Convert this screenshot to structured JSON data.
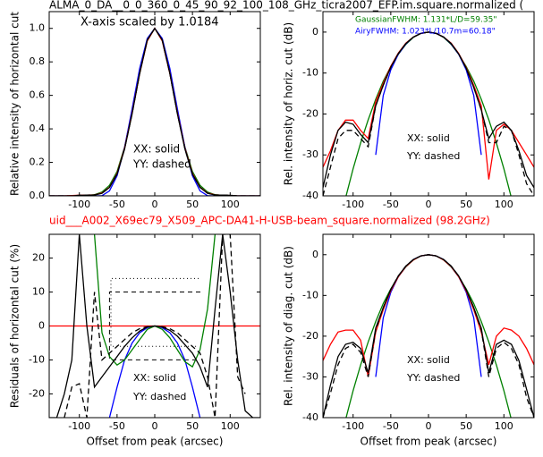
{
  "chart_data": [
    {
      "type": "line",
      "title": "ALMA_0_DA__0_0_360_0_45_90_92_100_108_GHz_ticra2007_EFP.im.square.normalized (",
      "ylabel": "Relative intensity of horizontal cut",
      "annotations": [
        "X-axis scaled by 1.0184",
        "XX: solid",
        "YY: dashed"
      ],
      "x": [
        -140,
        -130,
        -120,
        -110,
        -100,
        -90,
        -80,
        -70,
        -60,
        -50,
        -40,
        -30,
        -20,
        -10,
        0,
        10,
        20,
        30,
        40,
        50,
        60,
        70,
        80,
        90,
        100,
        110,
        120,
        130,
        140
      ],
      "xlim": [
        -140,
        140
      ],
      "xticks": [
        -100,
        -50,
        0,
        50,
        100
      ],
      "ylim": [
        0,
        1.1
      ],
      "yticks": [
        {
          "value": 0,
          "label": "0.0"
        },
        0.2,
        0.4,
        0.6,
        0.8,
        {
          "value": 1,
          "label": "1.0"
        }
      ],
      "series": [
        {
          "color": "#008000",
          "values": [
            0,
            0,
            0,
            0,
            0,
            0.002,
            0.007,
            0.023,
            0.063,
            0.146,
            0.292,
            0.5,
            0.735,
            0.926,
            1,
            0.926,
            0.735,
            0.5,
            0.292,
            0.146,
            0.063,
            0.023,
            0.007,
            0.002,
            0,
            0,
            0,
            0,
            0
          ]
        },
        {
          "color": "#0000ff",
          "values": [
            0,
            0,
            0,
            0,
            0,
            0,
            0,
            0.001,
            0.03,
            0.12,
            0.29,
            0.52,
            0.76,
            0.94,
            1,
            0.94,
            0.76,
            0.52,
            0.29,
            0.12,
            0.03,
            0.001,
            0,
            0,
            0,
            0,
            0,
            0,
            0
          ]
        },
        {
          "color": "#ff0000",
          "values": [
            0,
            0,
            0,
            0.002,
            0.004,
            0.005,
            0.006,
            0.017,
            0.052,
            0.135,
            0.285,
            0.495,
            0.73,
            0.925,
            1,
            0.925,
            0.73,
            0.495,
            0.285,
            0.135,
            0.052,
            0.017,
            0.006,
            0.004,
            0.002,
            0,
            0,
            0,
            0
          ]
        },
        {
          "color": "#000000",
          "values": [
            0,
            0,
            0,
            0,
            0.003,
            0.005,
            0.005,
            0.015,
            0.05,
            0.13,
            0.28,
            0.49,
            0.73,
            0.93,
            1,
            0.93,
            0.73,
            0.49,
            0.28,
            0.13,
            0.05,
            0.015,
            0.005,
            0.005,
            0.003,
            0,
            0,
            0,
            0
          ]
        },
        {
          "color": "#000000",
          "dashed": true,
          "values": [
            0,
            0,
            0,
            0,
            0.003,
            0.005,
            0.006,
            0.016,
            0.051,
            0.132,
            0.282,
            0.492,
            0.73,
            0.93,
            1,
            0.93,
            0.73,
            0.492,
            0.282,
            0.132,
            0.051,
            0.016,
            0.006,
            0.005,
            0.003,
            0,
            0,
            0,
            0
          ]
        }
      ]
    },
    {
      "type": "line",
      "ylabel": "Rel. intensity of horiz. cut (dB)",
      "annotations": [
        "XX: solid",
        "YY: dashed"
      ],
      "legend_texts": [
        {
          "text": "GaussianFWHM: 1.131*L/D=59.35\"",
          "color": "#008000"
        },
        {
          "text": "AiryFWHM: 1.023*L/10.7m=60.18\"",
          "color": "#0000ff"
        }
      ],
      "x": [
        -140,
        -130,
        -120,
        -110,
        -100,
        -90,
        -80,
        -70,
        -60,
        -50,
        -40,
        -30,
        -20,
        -10,
        0,
        10,
        20,
        30,
        40,
        50,
        60,
        70,
        80,
        90,
        100,
        110,
        120,
        130,
        140
      ],
      "xlim": [
        -140,
        140
      ],
      "xticks": [
        -100,
        -50,
        0,
        50,
        100
      ],
      "ylim": [
        -40,
        5
      ],
      "yticks": [
        -40,
        -30,
        -20,
        -10,
        0
      ],
      "series": [
        {
          "color": "#008000",
          "values": [
            null,
            null,
            null,
            -40.5,
            -33.4,
            -27.1,
            -21.4,
            -16.4,
            -12,
            -8.4,
            -5.4,
            -3,
            -1.3,
            -0.3,
            0,
            -0.3,
            -1.3,
            -3,
            -5.4,
            -8.4,
            -12,
            -16.4,
            -21.4,
            -27.1,
            -33.4,
            -40.5,
            null,
            null,
            null
          ]
        },
        {
          "color": "#0000ff",
          "values": [
            null,
            null,
            null,
            null,
            null,
            null,
            null,
            -30,
            -15.5,
            -9.2,
            -5.4,
            -2.9,
            -1.2,
            -0.3,
            0,
            -0.3,
            -1.2,
            -2.9,
            -5.4,
            -9.2,
            -15.5,
            -30,
            null,
            null,
            null,
            null,
            null,
            null,
            null
          ]
        },
        {
          "color": "#ff0000",
          "values": [
            -33,
            -29,
            -24,
            -21.5,
            -21.5,
            -24,
            -26,
            -17,
            -12.5,
            -8.3,
            -5.1,
            -2.7,
            -1.2,
            -0.3,
            0,
            -0.3,
            -1.2,
            -2.7,
            -5.2,
            -8.6,
            -13,
            -18,
            -36,
            -24,
            -22.5,
            -24,
            -27,
            -30,
            -33
          ]
        },
        {
          "color": "#000000",
          "values": [
            -38,
            -30,
            -24,
            -22,
            -22.5,
            -25,
            -27,
            -18,
            -13,
            -8.5,
            -5.2,
            -2.8,
            -1.2,
            -0.3,
            0,
            -0.3,
            -1.2,
            -2.8,
            -5.3,
            -8.8,
            -13.5,
            -19,
            -26,
            -23,
            -22,
            -24,
            -29,
            -35,
            -38
          ]
        },
        {
          "color": "#000000",
          "dashed": true,
          "values": [
            -40,
            -33,
            -26,
            -24,
            -24,
            -26,
            -28,
            -18,
            -13,
            -8.6,
            -5.3,
            -2.8,
            -1.2,
            -0.3,
            0,
            -0.3,
            -1.2,
            -2.8,
            -5.3,
            -8.8,
            -13.5,
            -19,
            -27,
            -27,
            -23,
            -24,
            -30,
            -37,
            -40
          ]
        }
      ]
    },
    {
      "type": "line",
      "title": "uid___A002_X69ec79_X509_APC-DA41-H-USB-beam_square.normalized (98.2GHz)",
      "title_color": "#ff0000",
      "ylabel": "Residuals of horizontal cut (%)",
      "xlabel": "Offset from peak (arcsec)",
      "annotations": [
        "XX: solid",
        "YY: dashed"
      ],
      "x": [
        -140,
        -130,
        -120,
        -110,
        -100,
        -90,
        -80,
        -70,
        -60,
        -50,
        -40,
        -30,
        -20,
        -10,
        0,
        10,
        20,
        30,
        40,
        50,
        60,
        70,
        80,
        90,
        100,
        110,
        120,
        130,
        140
      ],
      "xlim": [
        -140,
        140
      ],
      "xticks": [
        -100,
        -50,
        0,
        50,
        100
      ],
      "ylim": [
        -27,
        27
      ],
      "yticks": [
        -20,
        -10,
        0,
        10,
        20
      ],
      "series": [
        {
          "color": "#ff0000",
          "values": [
            0,
            0,
            0,
            0,
            0,
            0,
            0,
            0,
            0,
            0,
            0,
            0,
            0,
            0,
            0,
            0,
            0,
            0,
            0,
            0,
            0,
            0,
            0,
            0,
            0,
            0,
            0,
            0,
            0
          ]
        },
        {
          "color": "#0000ff",
          "values": [
            null,
            null,
            null,
            null,
            null,
            null,
            null,
            null,
            -27,
            -18,
            -10,
            -5,
            -2,
            -0.5,
            0,
            -0.5,
            -2,
            -5,
            -10,
            -18,
            -27,
            null,
            null,
            null,
            null,
            null,
            null,
            null,
            null
          ]
        },
        {
          "color": "#008000",
          "values": [
            null,
            null,
            null,
            null,
            null,
            null,
            27,
            -2,
            -9,
            -11.5,
            -10,
            -7,
            -4,
            -1,
            0,
            -1,
            -3.5,
            -7,
            -10.5,
            -12,
            -7,
            5,
            27,
            null,
            null,
            null,
            null,
            null,
            null
          ]
        },
        {
          "color": "#000000",
          "values": [
            -27,
            -27,
            -20,
            -10,
            27,
            0,
            -18,
            -15,
            -12,
            -9,
            -6,
            -3.5,
            -1.5,
            -0.3,
            0,
            -0.3,
            -1.3,
            -3,
            -5.5,
            -8,
            -12,
            -18,
            5,
            27,
            10,
            -10,
            -25,
            -27,
            -27
          ]
        },
        {
          "color": "#000000",
          "dashed": true,
          "values": [
            null,
            null,
            -27,
            -18,
            -17,
            -27,
            10,
            -10,
            -8,
            -6,
            -4,
            -2,
            -0.8,
            -0.2,
            0,
            -0.2,
            -0.8,
            -2,
            -4,
            -6,
            -8,
            -15,
            -27,
            27,
            27,
            -15,
            -20,
            null,
            null
          ]
        }
      ]
    },
    {
      "type": "line",
      "ylabel": "Rel. intensity of diag. cut (dB)",
      "xlabel": "Offset from peak (arcsec)",
      "annotations": [
        "XX: solid",
        "YY: dashed"
      ],
      "x": [
        -140,
        -130,
        -120,
        -110,
        -100,
        -90,
        -80,
        -70,
        -60,
        -50,
        -40,
        -30,
        -20,
        -10,
        0,
        10,
        20,
        30,
        40,
        50,
        60,
        70,
        80,
        90,
        100,
        110,
        120,
        130,
        140
      ],
      "xlim": [
        -140,
        140
      ],
      "xticks": [
        -100,
        -50,
        0,
        50,
        100
      ],
      "ylim": [
        -40,
        5
      ],
      "yticks": [
        -40,
        -30,
        -20,
        -10,
        0
      ],
      "series": [
        {
          "color": "#008000",
          "values": [
            null,
            null,
            null,
            -40.5,
            -33.4,
            -27.1,
            -21.4,
            -16.4,
            -12,
            -8.4,
            -5.4,
            -3,
            -1.3,
            -0.3,
            0,
            -0.3,
            -1.3,
            -3,
            -5.4,
            -8.4,
            -12,
            -16.4,
            -21.4,
            -27.1,
            -33.4,
            -40.5,
            null,
            null,
            null
          ]
        },
        {
          "color": "#0000ff",
          "values": [
            null,
            null,
            null,
            null,
            null,
            null,
            null,
            -30,
            -15.5,
            -9.2,
            -5.4,
            -2.9,
            -1.2,
            -0.3,
            0,
            -0.3,
            -1.2,
            -2.9,
            -5.4,
            -9.2,
            -15.5,
            -30,
            null,
            null,
            null,
            null,
            null,
            null,
            null
          ]
        },
        {
          "color": "#ff0000",
          "values": [
            -26,
            -22,
            -19,
            -18.5,
            -18.5,
            -21,
            -30,
            -19,
            -13.5,
            -8.8,
            -5.4,
            -2.9,
            -1.3,
            -0.3,
            0,
            -0.3,
            -1.3,
            -2.9,
            -5.4,
            -8.9,
            -13.5,
            -19,
            -27,
            -20,
            -18,
            -18.5,
            -20,
            -23,
            -27
          ]
        },
        {
          "color": "#000000",
          "values": [
            -40,
            -32,
            -25,
            -22,
            -21.5,
            -23,
            -29,
            -18,
            -13,
            -8.5,
            -5.2,
            -2.8,
            -1.2,
            -0.3,
            0,
            -0.3,
            -1.2,
            -2.8,
            -5.2,
            -8.6,
            -13,
            -18,
            -29,
            -22,
            -21,
            -22,
            -26,
            -33,
            -40
          ]
        },
        {
          "color": "#000000",
          "dashed": true,
          "values": [
            -40,
            -34,
            -27,
            -23,
            -22,
            -24,
            -30,
            -18.5,
            -13,
            -8.5,
            -5.2,
            -2.8,
            -1.2,
            -0.3,
            0,
            -0.3,
            -1.2,
            -2.8,
            -5.2,
            -8.6,
            -13,
            -18.5,
            -30,
            -23,
            -21.5,
            -23,
            -27,
            -35,
            -40
          ]
        }
      ]
    }
  ]
}
